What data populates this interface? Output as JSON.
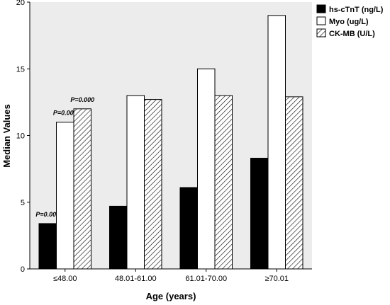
{
  "chart_data": {
    "type": "bar",
    "xlabel": "Age (years)",
    "ylabel": "Median Values",
    "ylim": [
      0,
      20
    ],
    "yticks": [
      0,
      5,
      10,
      15,
      20
    ],
    "categories": [
      "≤48.00",
      "48.01-61.00",
      "61.01-70.00",
      "≥70.01"
    ],
    "series": [
      {
        "name": "hs-cTnT (ng/L)",
        "values": [
          3.4,
          4.7,
          6.1,
          8.3
        ],
        "fill": "#000000",
        "pattern": "solid"
      },
      {
        "name": "Myo (ug/L)",
        "values": [
          11.0,
          13.0,
          15.0,
          19.0
        ],
        "fill": "#ffffff",
        "pattern": "solid"
      },
      {
        "name": "CK-MB (U/L)",
        "values": [
          12.0,
          12.7,
          13.0,
          12.9
        ],
        "fill": "#ffffff",
        "pattern": "hatch"
      }
    ],
    "annotations": [
      {
        "text": "P=0.000",
        "series": 0,
        "category": 0
      },
      {
        "text": "P=0.000",
        "series": 1,
        "category": 0
      },
      {
        "text": "P=0.000",
        "series": 2,
        "category": 0
      }
    ],
    "legend_position": "top-right",
    "plot_background": "#ececec",
    "grid": false
  }
}
